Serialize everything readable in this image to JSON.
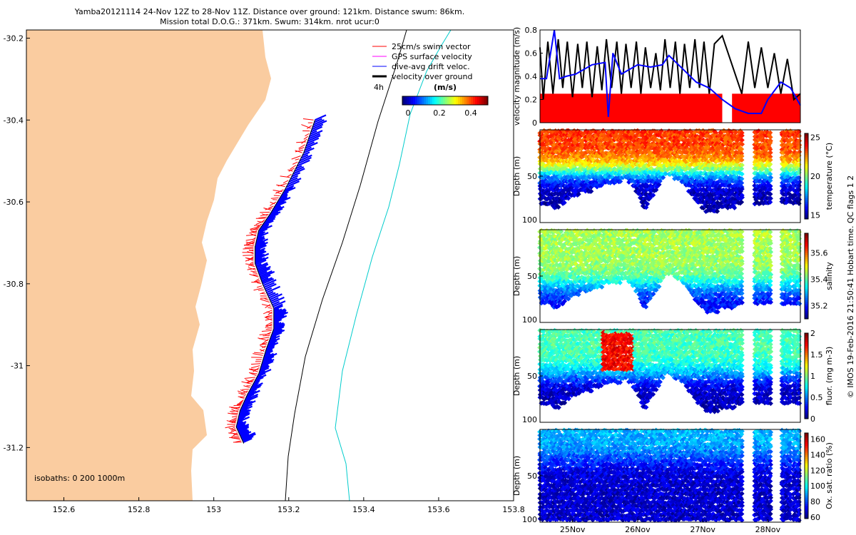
{
  "header": {
    "line1": "Yamba20121114 24-Nov 12Z to 28-Nov 11Z. Distance over ground: 121km. Distance swum: 86km.",
    "line2": "Mission total D.O.G.: 371km. Swum: 314km. nrot ucur:0"
  },
  "side_caption": "© IMOS 19-Feb-2016 21:50:41 Hobart time. QC flags 1  2",
  "colors": {
    "land": "#FACCA0",
    "swim_vector": "#FF0000",
    "gps_surface": "#FF00FF",
    "drift": "#0000FF",
    "ground": "#000000",
    "isobath_200": "#000000",
    "isobath_1000": "#00CCCC",
    "speed_fill": "#FF0000"
  },
  "chart_data": [
    {
      "type": "map",
      "xlim": [
        152.5,
        153.8
      ],
      "ylim": [
        -31.33,
        -30.18
      ],
      "xticks": [
        "152.6",
        "152.8",
        "153",
        "153.2",
        "153.4",
        "153.6",
        "153.8"
      ],
      "yticks": [
        "-30.2",
        "-30.4",
        "-30.6",
        "-30.8",
        "-31",
        "-31.2"
      ],
      "legend": {
        "entries": [
          {
            "label": "25cm/s swim vector",
            "color": "#FF0000"
          },
          {
            "label": "GPS surface velocity",
            "color": "#FF00FF"
          },
          {
            "label": "dive-avg drift veloc.",
            "color": "#0000FF"
          },
          {
            "label": "velocity over ground",
            "color": "#000000"
          }
        ],
        "interval_label": "4h",
        "colorbar_title": "(m/s)",
        "colorbar_ticks": [
          "0",
          "0.2",
          "0.4"
        ]
      },
      "isobath_label": "isobaths: 0   200  1000m",
      "track": [
        [
          153.27,
          -30.4
        ],
        [
          153.24,
          -30.48
        ],
        [
          153.19,
          -30.57
        ],
        [
          153.15,
          -30.63
        ],
        [
          153.12,
          -30.67
        ],
        [
          153.11,
          -30.71
        ],
        [
          153.11,
          -30.75
        ],
        [
          153.13,
          -30.8
        ],
        [
          153.16,
          -30.86
        ],
        [
          153.16,
          -30.91
        ],
        [
          153.14,
          -30.96
        ],
        [
          153.12,
          -31.02
        ],
        [
          153.09,
          -31.07
        ],
        [
          153.07,
          -31.11
        ],
        [
          153.06,
          -31.15
        ],
        [
          153.08,
          -31.19
        ]
      ]
    },
    {
      "type": "line",
      "ylabel": "velocity magnitude (m/s)",
      "ylim": [
        0,
        0.8
      ],
      "yticks": [
        "0",
        "0.2",
        "0.4",
        "0.6",
        "0.8"
      ],
      "xlim": [
        24.5,
        28.5
      ],
      "series": [
        {
          "role": "swim speed (filled)",
          "color": "#FF0000",
          "x": [
            24.5,
            27.3,
            27.3,
            27.45,
            27.45,
            28.5
          ],
          "values": [
            0.25,
            0.25,
            0.0,
            0.0,
            0.25,
            0.25
          ]
        },
        {
          "role": "velocity over ground",
          "color": "#000000",
          "x": [
            24.5,
            24.55,
            24.62,
            24.7,
            24.78,
            24.85,
            24.92,
            25.0,
            25.08,
            25.15,
            25.22,
            25.3,
            25.38,
            25.45,
            25.52,
            25.6,
            25.68,
            25.75,
            25.82,
            25.9,
            25.98,
            26.05,
            26.12,
            26.2,
            26.28,
            26.35,
            26.42,
            26.5,
            26.58,
            26.65,
            26.72,
            26.8,
            26.88,
            26.95,
            27.02,
            27.1,
            27.18,
            27.3,
            27.6,
            27.7,
            27.8,
            27.9,
            28.0,
            28.1,
            28.2,
            28.3,
            28.4,
            28.5
          ],
          "values": [
            0.65,
            0.2,
            0.7,
            0.25,
            0.72,
            0.3,
            0.7,
            0.22,
            0.68,
            0.3,
            0.7,
            0.22,
            0.66,
            0.28,
            0.72,
            0.3,
            0.7,
            0.25,
            0.68,
            0.3,
            0.7,
            0.25,
            0.65,
            0.3,
            0.6,
            0.28,
            0.72,
            0.3,
            0.7,
            0.25,
            0.68,
            0.3,
            0.72,
            0.3,
            0.7,
            0.25,
            0.68,
            0.75,
            0.25,
            0.7,
            0.3,
            0.65,
            0.3,
            0.6,
            0.25,
            0.55,
            0.2,
            0.25
          ]
        },
        {
          "role": "dive-avg drift",
          "color": "#0000FF",
          "x": [
            24.5,
            24.6,
            24.72,
            24.8,
            24.9,
            25.05,
            25.3,
            25.5,
            25.55,
            25.62,
            25.75,
            26.0,
            26.2,
            26.38,
            26.48,
            26.7,
            26.9,
            27.1,
            27.3,
            27.5,
            27.7,
            27.9,
            28.0,
            28.2,
            28.35,
            28.5
          ],
          "values": [
            0.38,
            0.38,
            0.8,
            0.38,
            0.4,
            0.42,
            0.5,
            0.52,
            0.05,
            0.6,
            0.42,
            0.5,
            0.48,
            0.5,
            0.58,
            0.46,
            0.35,
            0.3,
            0.2,
            0.12,
            0.08,
            0.08,
            0.2,
            0.35,
            0.3,
            0.15
          ]
        }
      ]
    },
    {
      "type": "scatter",
      "ylabel": "Depth (m)",
      "ylim": [
        0,
        100
      ],
      "yticks": [
        "50",
        "100"
      ],
      "colorbar_label": "temperature (°C)",
      "clim": [
        14.5,
        25.5
      ],
      "colorbar_ticks": [
        "25",
        "20",
        "15"
      ],
      "bottom_profile": [
        [
          24.5,
          78
        ],
        [
          24.75,
          85
        ],
        [
          25.0,
          72
        ],
        [
          25.3,
          65
        ],
        [
          25.55,
          58
        ],
        [
          25.85,
          55
        ],
        [
          26.0,
          68
        ],
        [
          26.1,
          86
        ],
        [
          26.25,
          70
        ],
        [
          26.45,
          46
        ],
        [
          26.7,
          58
        ],
        [
          26.95,
          82
        ],
        [
          27.1,
          92
        ],
        [
          27.3,
          85
        ],
        [
          27.6,
          82
        ]
      ],
      "gaps": [
        [
          27.62,
          27.78
        ],
        [
          28.05,
          28.2
        ],
        [
          28.35,
          28.38
        ]
      ],
      "profile_top": 2,
      "upper_value": 23.5,
      "lower_value": 15.0,
      "transition_depth": 45
    },
    {
      "type": "scatter",
      "ylabel": "Depth (m)",
      "ylim": [
        0,
        100
      ],
      "yticks": [
        "50",
        "100"
      ],
      "colorbar_label": "salinity",
      "clim": [
        35.1,
        35.75
      ],
      "colorbar_ticks": [
        "35.6",
        "35.4",
        "35.2"
      ],
      "bottom_profile": [
        [
          24.5,
          78
        ],
        [
          24.75,
          85
        ],
        [
          25.0,
          72
        ],
        [
          25.3,
          65
        ],
        [
          25.55,
          58
        ],
        [
          25.85,
          55
        ],
        [
          26.0,
          68
        ],
        [
          26.1,
          86
        ],
        [
          26.25,
          70
        ],
        [
          26.45,
          46
        ],
        [
          26.7,
          58
        ],
        [
          26.95,
          82
        ],
        [
          27.1,
          92
        ],
        [
          27.3,
          85
        ],
        [
          27.6,
          82
        ]
      ],
      "gaps": [
        [
          27.62,
          27.78
        ],
        [
          28.05,
          28.2
        ],
        [
          28.35,
          28.38
        ]
      ],
      "profile_top": 2,
      "upper_value": 35.45,
      "lower_value": 35.18,
      "transition_depth": 60
    },
    {
      "type": "scatter",
      "ylabel": "Depth (m)",
      "ylim": [
        0,
        100
      ],
      "yticks": [
        "50",
        "100"
      ],
      "colorbar_label": "fluor. (mg m-3)",
      "clim": [
        0,
        2
      ],
      "colorbar_ticks": [
        "2",
        "1.5",
        "1",
        "0.5",
        "0"
      ],
      "bottom_profile": [
        [
          24.5,
          78
        ],
        [
          24.75,
          85
        ],
        [
          25.0,
          72
        ],
        [
          25.3,
          65
        ],
        [
          25.55,
          58
        ],
        [
          25.85,
          55
        ],
        [
          26.0,
          68
        ],
        [
          26.1,
          86
        ],
        [
          26.25,
          70
        ],
        [
          26.45,
          46
        ],
        [
          26.7,
          58
        ],
        [
          26.95,
          82
        ],
        [
          27.1,
          92
        ],
        [
          27.3,
          85
        ],
        [
          27.6,
          82
        ]
      ],
      "gaps": [
        [
          27.62,
          27.78
        ],
        [
          28.05,
          28.2
        ],
        [
          28.35,
          28.38
        ]
      ],
      "profile_top": 2,
      "upper_value": 0.9,
      "lower_value": 0.1,
      "transition_depth": 50,
      "peak": {
        "x": [
          25.45,
          25.95
        ],
        "depth": [
          3,
          45
        ],
        "value": 1.75
      }
    },
    {
      "type": "scatter",
      "ylabel": "Depth (m)",
      "ylim": [
        0,
        100
      ],
      "yticks": [
        "50",
        "100"
      ],
      "colorbar_label": "Ox. sat. ratio (%)",
      "clim": [
        58,
        168
      ],
      "colorbar_ticks": [
        "160",
        "140",
        "120",
        "100",
        "80",
        "60"
      ],
      "xticks": [
        {
          "x": 25,
          "label": "25Nov"
        },
        {
          "x": 26,
          "label": "26Nov"
        },
        {
          "x": 27,
          "label": "27Nov"
        },
        {
          "x": 28,
          "label": "28Nov"
        }
      ],
      "bottom_profile": [
        [
          24.5,
          98
        ],
        [
          27.6,
          98
        ]
      ],
      "gaps": [
        [
          27.62,
          27.78
        ],
        [
          28.05,
          28.2
        ],
        [
          28.35,
          28.38
        ]
      ],
      "profile_top": 2,
      "upper_value": 92,
      "lower_value": 66,
      "transition_depth": 32
    }
  ]
}
